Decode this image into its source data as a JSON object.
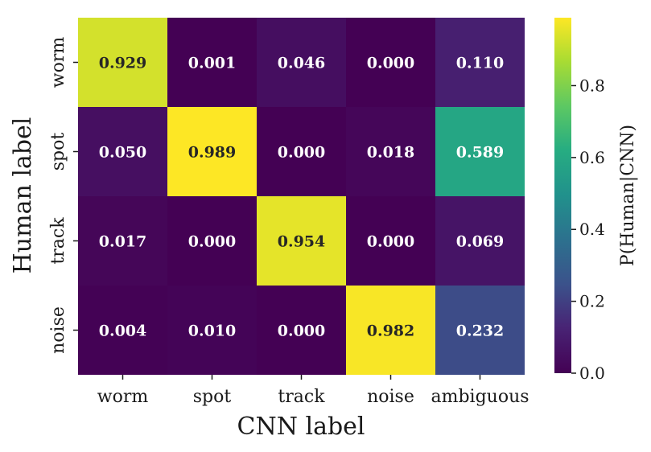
{
  "chart_data": {
    "type": "heatmap",
    "title": "",
    "xlabel": "CNN label",
    "ylabel": "Human label",
    "x_categories": [
      "worm",
      "spot",
      "track",
      "noise",
      "ambiguous"
    ],
    "y_categories": [
      "worm",
      "spot",
      "track",
      "noise"
    ],
    "values": [
      [
        0.929,
        0.001,
        0.046,
        0.0,
        0.11
      ],
      [
        0.05,
        0.989,
        0.0,
        0.018,
        0.589
      ],
      [
        0.017,
        0.0,
        0.954,
        0.0,
        0.069
      ],
      [
        0.004,
        0.01,
        0.0,
        0.982,
        0.232
      ]
    ],
    "value_labels": [
      [
        "0.929",
        "0.001",
        "0.046",
        "0.000",
        "0.110"
      ],
      [
        "0.050",
        "0.989",
        "0.000",
        "0.018",
        "0.589"
      ],
      [
        "0.017",
        "0.000",
        "0.954",
        "0.000",
        "0.069"
      ],
      [
        "0.004",
        "0.010",
        "0.000",
        "0.982",
        "0.232"
      ]
    ],
    "colormap": "viridis",
    "color_range": [
      0.0,
      0.989
    ],
    "colorbar": {
      "label": "P(Human|CNN)",
      "ticks": [
        0.0,
        0.2,
        0.4,
        0.6,
        0.8
      ],
      "tick_labels": [
        "0.0",
        "0.2",
        "0.4",
        "0.6",
        "0.8"
      ],
      "placement": "right"
    },
    "legend": "none",
    "grid": false
  }
}
